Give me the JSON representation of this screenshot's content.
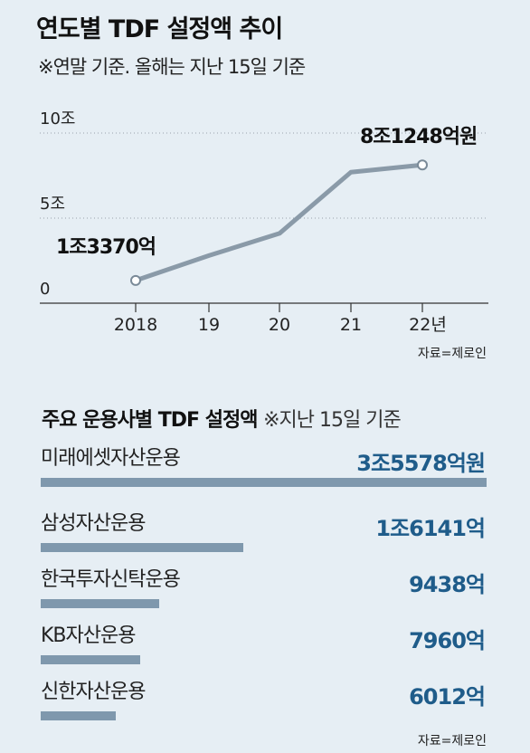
{
  "header": {
    "title": "연도별 TDF 설정액 추이",
    "subtitle": "※연말 기준. 올해는 지난 15일 기준"
  },
  "chart_data": [
    {
      "type": "line",
      "title": "연도별 TDF 설정액 추이",
      "subtitle": "※연말 기준. 올해는 지난 15일 기준",
      "x": [
        "2018",
        "19",
        "20",
        "21",
        "22년"
      ],
      "series": [
        {
          "values": [
            1.337,
            2.8,
            4.1,
            7.7,
            8.1248
          ]
        }
      ],
      "ylim": [
        0,
        10
      ],
      "yticks": [
        {
          "value": 0,
          "label": "0"
        },
        {
          "value": 5,
          "label": "5조"
        },
        {
          "value": 10,
          "label": "10조"
        }
      ],
      "annotations": [
        {
          "index": 0,
          "label": "1조3370억"
        },
        {
          "index": 4,
          "label": "8조1248억원"
        }
      ],
      "grid": "dotted horizontal",
      "line_color": "#8a9aa8",
      "source": "자료=제로인"
    },
    {
      "type": "bar",
      "orientation": "horizontal",
      "title": "주요 운용사별 TDF 설정액",
      "subtitle": "※지난 15일 기준",
      "categories": [
        "미래에셋자산운용",
        "삼성자산운용",
        "한국투자신탁운용",
        "KB자산운용",
        "신한자산운용"
      ],
      "values": [
        35578,
        16141,
        9438,
        7960,
        6012
      ],
      "value_labels": [
        "3조5578억원",
        "1조6141억",
        "9438억",
        "7960억",
        "6012억"
      ],
      "unit": "억원",
      "bar_color": "#7f98ad",
      "value_color": "#1f5c8a",
      "source": "자료=제로인"
    }
  ]
}
